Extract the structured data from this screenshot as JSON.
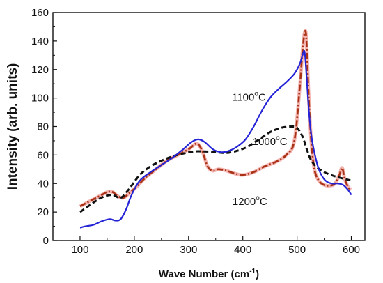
{
  "chart_data": {
    "type": "line",
    "xlabel_main": "Wave Number  (cm",
    "xlabel_sup": "-1",
    "xlabel_end": ")",
    "ylabel": "Intensity (arb. units)",
    "xlim": [
      50,
      625
    ],
    "ylim": [
      0,
      160
    ],
    "xticks": [
      100,
      200,
      300,
      400,
      500,
      600
    ],
    "yticks": [
      0,
      20,
      40,
      60,
      80,
      100,
      120,
      140,
      160
    ],
    "grid": false,
    "series": [
      {
        "name_main": "1100",
        "name_sup": "o",
        "name_end": "C",
        "color": "#2424d6",
        "style": "solid",
        "x": [
          100,
          110,
          125,
          140,
          155,
          165,
          175,
          185,
          195,
          210,
          230,
          250,
          270,
          290,
          305,
          318,
          330,
          345,
          360,
          375,
          390,
          405,
          420,
          435,
          450,
          465,
          480,
          495,
          505,
          510,
          514,
          518,
          522,
          527,
          533,
          540,
          548,
          556,
          565,
          575,
          585,
          595,
          600
        ],
        "y": [
          9,
          10,
          11,
          13.5,
          15,
          14,
          15,
          22,
          32,
          42,
          48,
          53,
          58,
          64,
          69,
          71,
          69,
          64,
          62,
          63,
          66,
          71,
          80,
          91,
          100,
          106,
          111,
          117,
          124,
          130,
          132,
          112,
          90,
          72,
          60,
          50,
          44,
          41,
          40,
          40,
          39,
          35,
          32
        ]
      },
      {
        "name_main": "1000",
        "name_sup": "o",
        "name_end": "C",
        "color": "#111111",
        "style": "dashed",
        "x": [
          100,
          115,
          130,
          145,
          160,
          175,
          190,
          210,
          230,
          250,
          270,
          290,
          310,
          330,
          350,
          370,
          390,
          410,
          430,
          450,
          470,
          490,
          500,
          510,
          518,
          525,
          535,
          550,
          570,
          590,
          600
        ],
        "y": [
          20,
          24,
          28,
          31,
          32,
          30,
          36,
          46,
          52,
          56,
          59,
          61,
          62.5,
          62.5,
          62,
          61.5,
          63,
          66,
          71,
          76,
          79,
          80,
          79,
          73,
          64,
          57,
          52,
          48,
          45,
          43,
          42
        ]
      },
      {
        "name_main": "1200",
        "name_sup": "o",
        "name_end": "C",
        "color": "#a83216",
        "style": "dashdot",
        "x": [
          100,
          110,
          125,
          140,
          150,
          160,
          170,
          180,
          190,
          205,
          220,
          240,
          260,
          280,
          300,
          315,
          325,
          335,
          345,
          355,
          370,
          385,
          400,
          420,
          440,
          460,
          480,
          495,
          505,
          510,
          514,
          517,
          521,
          526,
          532,
          540,
          550,
          560,
          570,
          578,
          583,
          588,
          595,
          600
        ],
        "y": [
          24,
          26,
          29,
          32,
          34,
          34,
          31,
          30,
          33,
          38,
          44,
          50,
          56,
          60,
          64,
          68,
          63,
          52,
          49,
          50,
          49,
          47,
          46,
          48,
          52,
          55,
          60,
          70,
          108,
          133,
          146,
          142,
          105,
          70,
          50,
          42,
          39,
          38.5,
          40,
          46,
          51,
          43,
          37,
          36
        ]
      }
    ]
  }
}
